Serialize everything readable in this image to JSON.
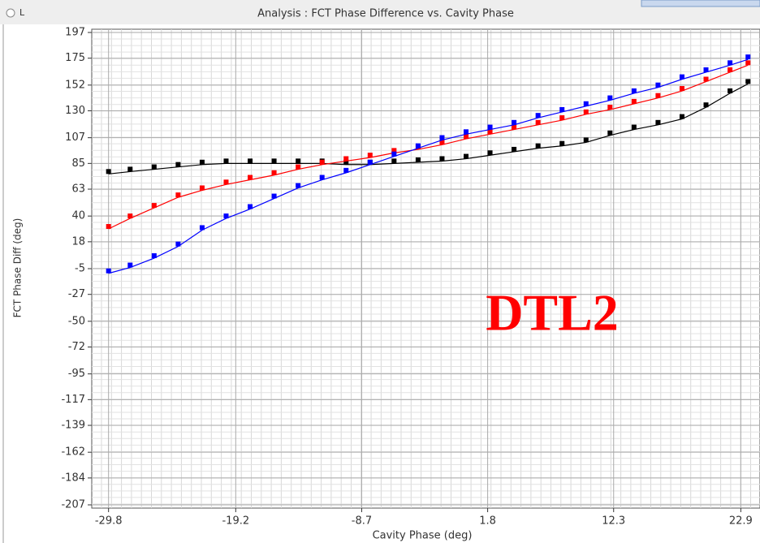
{
  "window": {
    "radio_label": "L"
  },
  "chart_data": {
    "type": "scatter",
    "title": "Analysis : FCT Phase Difference vs. Cavity Phase",
    "x_label": "Cavity Phase (deg)",
    "y_label": "FCT Phase Diff (deg)",
    "annotation": "DTL2",
    "x": [
      -29.8,
      -28,
      -26,
      -24,
      -22,
      -20,
      -18,
      -16,
      -14,
      -12,
      -10,
      -8,
      -6,
      -4,
      -2,
      0,
      2,
      4,
      6,
      8,
      10,
      12,
      14,
      16,
      18,
      20,
      22,
      23.5
    ],
    "series": [
      {
        "color": "#000000",
        "values": [
          76,
          78,
          80,
          82,
          84,
          85,
          85,
          85,
          85,
          85,
          84,
          84,
          85,
          86,
          87,
          89,
          92,
          95,
          98,
          100,
          103,
          109,
          114,
          118,
          123,
          133,
          145,
          153
        ]
      },
      {
        "color": "#ff0000",
        "values": [
          29,
          38,
          47,
          56,
          62,
          67,
          71,
          75,
          80,
          84,
          87,
          90,
          94,
          97,
          101,
          106,
          110,
          114,
          118,
          122,
          127,
          131,
          136,
          141,
          147,
          155,
          163,
          169
        ]
      },
      {
        "color": "#0000ff",
        "values": [
          -9,
          -4,
          4,
          14,
          28,
          38,
          46,
          55,
          64,
          71,
          77,
          84,
          91,
          98,
          105,
          110,
          114,
          118,
          124,
          129,
          134,
          139,
          145,
          150,
          157,
          163,
          169,
          174
        ]
      }
    ],
    "xlim": [
      -31.2,
      24.5
    ],
    "xticks": [
      -29.8,
      -19.2,
      -8.7,
      1.8,
      12.3,
      22.9
    ],
    "ylim": [
      -207,
      197
    ],
    "yticks": [
      197,
      175,
      152,
      130,
      107,
      85,
      63,
      40,
      18,
      -5,
      -27,
      -50,
      -72,
      -95,
      -117,
      -139,
      -162,
      -184,
      -207
    ],
    "grid": true
  }
}
